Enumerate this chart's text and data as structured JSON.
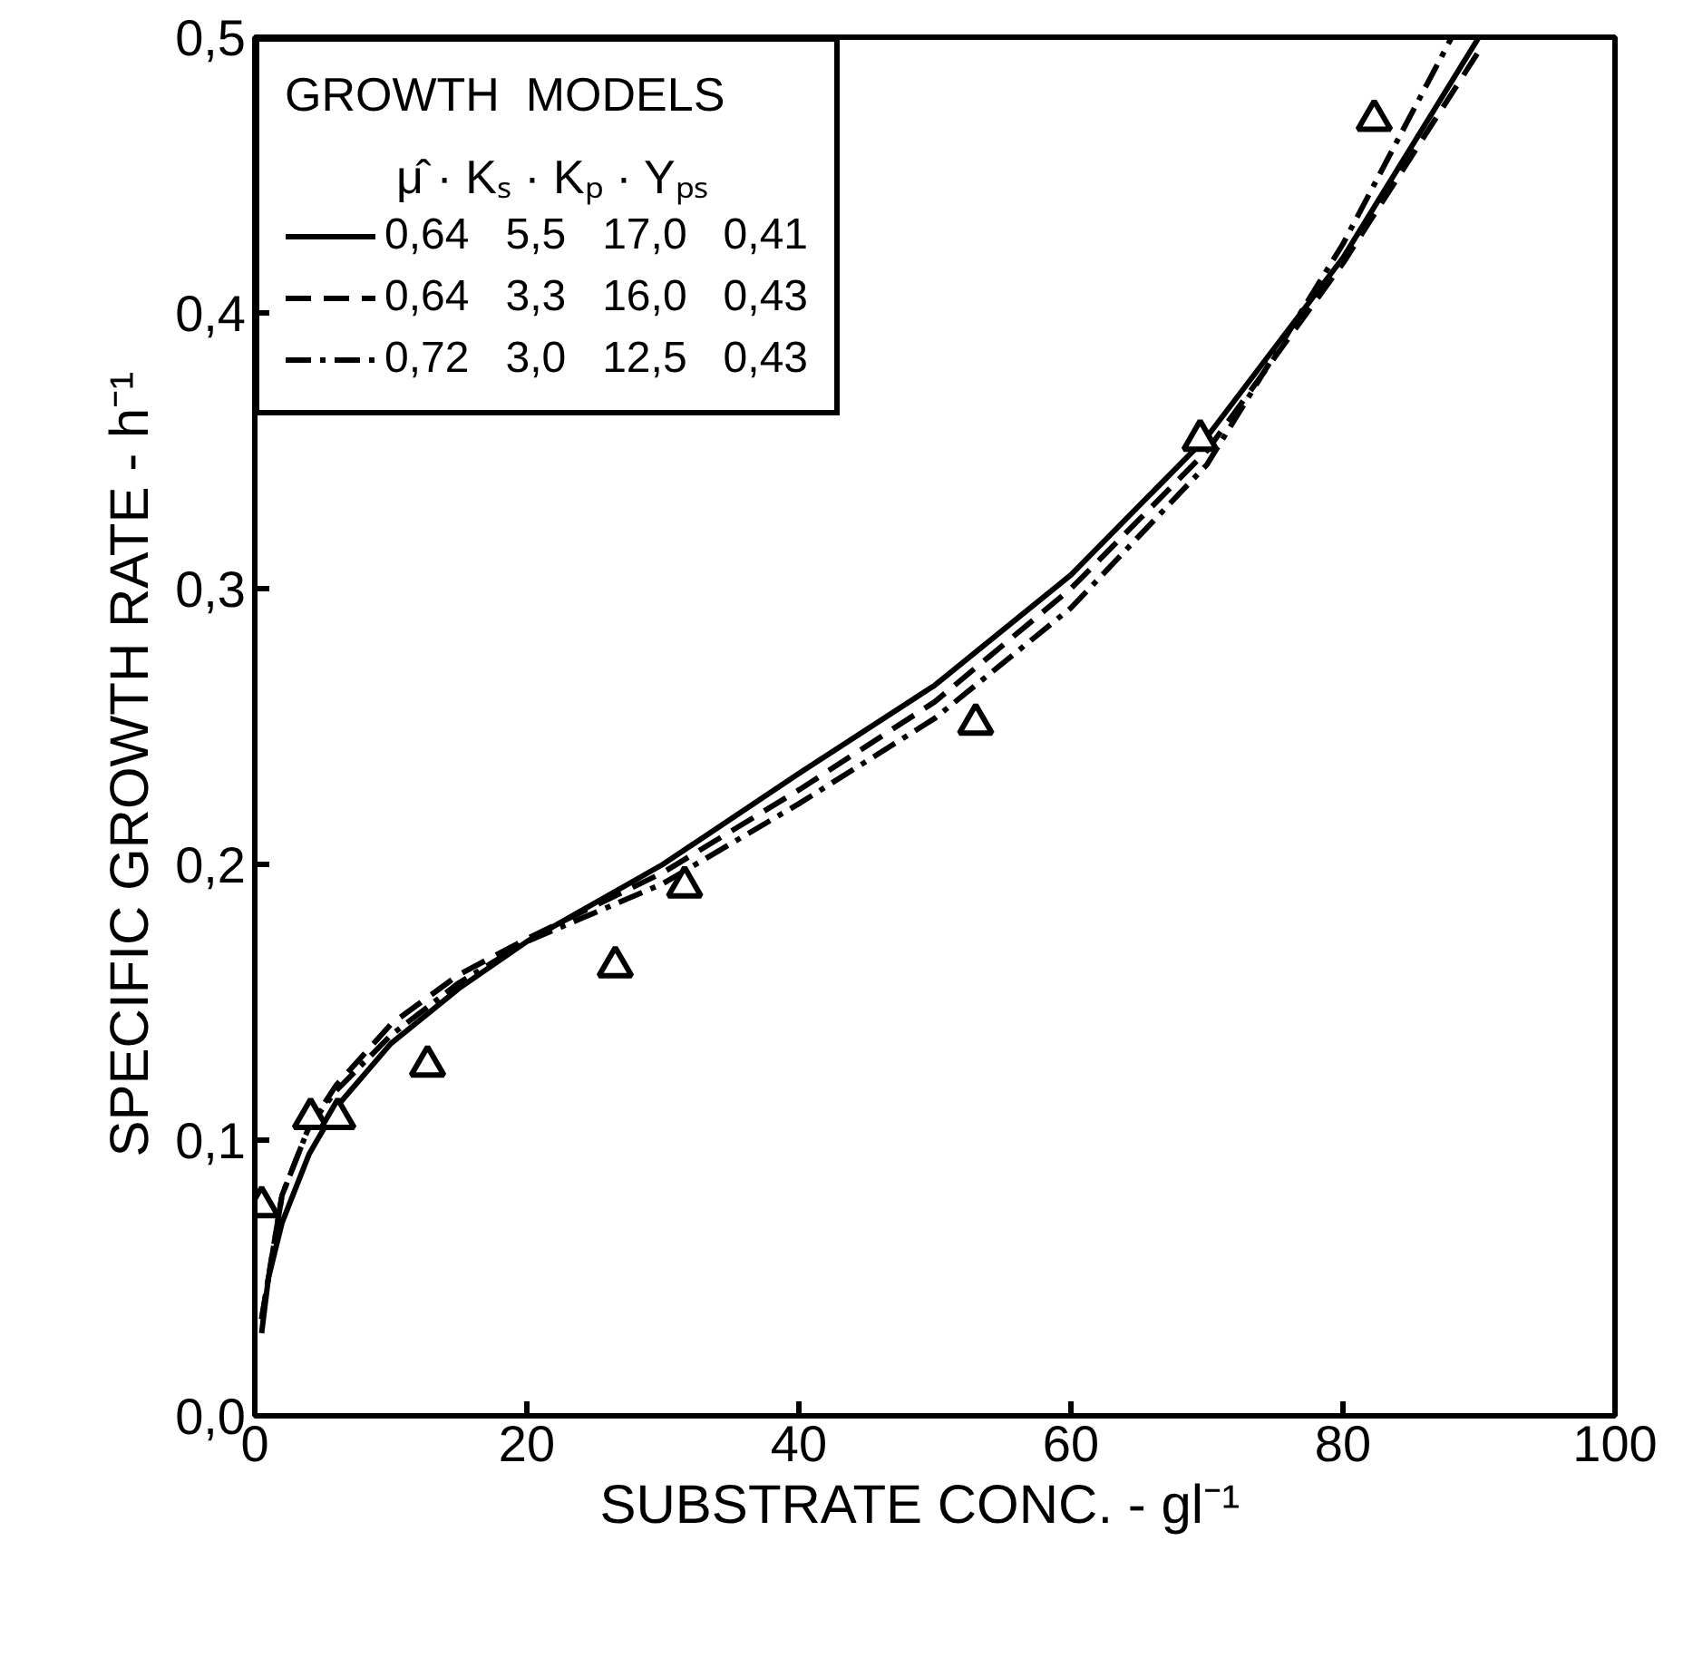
{
  "chart_data": {
    "type": "line",
    "xlabel": "SUBSTRATE  CONC.  - gl⁻¹",
    "ylabel": "SPECIFIC   GROWTH   RATE  - h⁻¹",
    "legend_title": "GROWTH  MODELS",
    "annotations": [
      "μ̂ · Kₛ · Kₚ · Yₚₛ"
    ],
    "xlim": [
      0,
      100
    ],
    "ylim": [
      0,
      0.5
    ],
    "xticks": [
      0,
      20,
      40,
      60,
      80,
      100
    ],
    "yticks": [
      {
        "value": 0,
        "label": "0,0"
      },
      {
        "value": 0.1,
        "label": "0,1"
      },
      {
        "value": 0.2,
        "label": "0,2"
      },
      {
        "value": 0.3,
        "label": "0,3"
      },
      {
        "value": 0.4,
        "label": "0,4"
      },
      {
        "value": 0.5,
        "label": "0,5"
      }
    ],
    "grid": false,
    "legend": "top left",
    "series": [
      {
        "name": "0,64   5,5   17,0   0,41",
        "color": "#000000",
        "line_style": "solid",
        "marker": "none",
        "x": [
          0.5,
          1,
          2,
          4,
          6,
          10,
          15,
          20,
          25,
          30,
          40,
          50,
          60,
          70,
          80,
          90
        ],
        "values": [
          0.03,
          0.05,
          0.07,
          0.095,
          0.112,
          0.135,
          0.155,
          0.172,
          0.186,
          0.2,
          0.233,
          0.265,
          0.305,
          0.355,
          0.42,
          0.5
        ]
      },
      {
        "name": "0,64   3,3   16,0   0,43",
        "color": "#000000",
        "line_style": "dashed",
        "marker": "none",
        "x": [
          0.5,
          2,
          4,
          6,
          10,
          15,
          20,
          30,
          40,
          50,
          60,
          70,
          80,
          90
        ],
        "values": [
          0.035,
          0.08,
          0.105,
          0.12,
          0.142,
          0.16,
          0.173,
          0.197,
          0.227,
          0.259,
          0.3,
          0.35,
          0.418,
          0.495
        ]
      },
      {
        "name": "0,72   3,0   12,5   0,43",
        "color": "#000000",
        "line_style": "dashdot",
        "marker": "none",
        "x": [
          0.5,
          2,
          4,
          6,
          10,
          15,
          20,
          30,
          40,
          50,
          60,
          70,
          80,
          88
        ],
        "values": [
          0.035,
          0.08,
          0.105,
          0.118,
          0.138,
          0.157,
          0.172,
          0.193,
          0.222,
          0.253,
          0.293,
          0.345,
          0.425,
          0.5
        ]
      },
      {
        "type": "scatter",
        "color": "#000000",
        "marker": "triangle",
        "x": [
          0.5,
          4.1,
          6.1,
          12.7,
          26.5,
          31.6,
          53.0,
          69.5,
          82.3
        ],
        "values": [
          0.076,
          0.108,
          0.108,
          0.127,
          0.163,
          0.192,
          0.251,
          0.354,
          0.47
        ]
      }
    ]
  }
}
